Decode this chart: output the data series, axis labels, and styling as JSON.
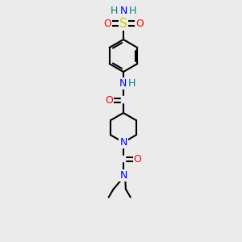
{
  "bg_color": "#ebebeb",
  "atom_colors": {
    "C": "#000000",
    "N": "#0000ff",
    "O": "#ff0000",
    "S": "#cccc00",
    "H": "#008080"
  },
  "bond_color": "#000000",
  "bond_width": 1.5,
  "figsize": [
    3.0,
    3.0
  ],
  "dpi": 100
}
